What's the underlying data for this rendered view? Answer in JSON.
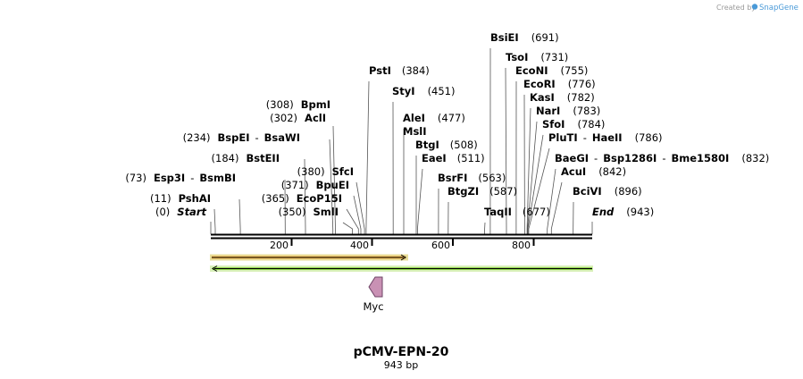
{
  "credit": {
    "text": "Created by",
    "brand": "SnapGene"
  },
  "map": {
    "name": "pCMV-EPN-20",
    "length_label": "943 bp",
    "length": 943,
    "ticks": [
      "200",
      "400",
      "600",
      "800"
    ],
    "feature_label": "Myc"
  },
  "sites": [
    {
      "key": "start",
      "name": "Start",
      "pos": 0,
      "num": "(0)",
      "italic": true
    },
    {
      "key": "pshai",
      "name": "PshAI",
      "pos": 11,
      "num": "(11)"
    },
    {
      "key": "esp3i",
      "name": "Esp3I",
      "name2": "BsmBI",
      "pos": 73,
      "num": "(73)"
    },
    {
      "key": "bsteii",
      "name": "BstEII",
      "pos": 184,
      "num": "(184)"
    },
    {
      "key": "bspei",
      "name": "BspEI",
      "name2": "BsaWI",
      "pos": 234,
      "num": "(234)"
    },
    {
      "key": "acli",
      "name": "AclI",
      "pos": 302,
      "num": "(302)"
    },
    {
      "key": "bpmi",
      "name": "BpmI",
      "pos": 308,
      "num": "(308)"
    },
    {
      "key": "smli",
      "name": "SmlI",
      "pos": 350,
      "num": "(350)"
    },
    {
      "key": "ecop15i",
      "name": "EcoP15I",
      "pos": 365,
      "num": "(365)"
    },
    {
      "key": "bpuei",
      "name": "BpuEI",
      "pos": 371,
      "num": "(371)"
    },
    {
      "key": "sfci",
      "name": "SfcI",
      "pos": 380,
      "num": "(380)"
    },
    {
      "key": "psti",
      "name": "PstI",
      "pos": 384,
      "num": "(384)"
    },
    {
      "key": "styi",
      "name": "StyI",
      "pos": 451,
      "num": "(451)"
    },
    {
      "key": "msli",
      "name": "MslI",
      "pos": 477,
      "num": ""
    },
    {
      "key": "alei",
      "name": "AleI",
      "pos": 477,
      "num": "(477)"
    },
    {
      "key": "btgi",
      "name": "BtgI",
      "pos": 508,
      "num": "(508)"
    },
    {
      "key": "eaei",
      "name": "EaeI",
      "pos": 511,
      "num": "(511)"
    },
    {
      "key": "bsrfi",
      "name": "BsrFI",
      "pos": 563,
      "num": "(563)"
    },
    {
      "key": "btgzi",
      "name": "BtgZI",
      "pos": 587,
      "num": "(587)"
    },
    {
      "key": "taqii",
      "name": "TaqII",
      "pos": 677,
      "num": "(677)"
    },
    {
      "key": "bsiei",
      "name": "BsiEI",
      "pos": 691,
      "num": "(691)"
    },
    {
      "key": "tsoi",
      "name": "TsoI",
      "pos": 731,
      "num": "(731)"
    },
    {
      "key": "econi",
      "name": "EcoNI",
      "pos": 755,
      "num": "(755)"
    },
    {
      "key": "ecori",
      "name": "EcoRI",
      "pos": 776,
      "num": "(776)"
    },
    {
      "key": "kasi",
      "name": "KasI",
      "pos": 782,
      "num": "(782)"
    },
    {
      "key": "nari",
      "name": "NarI",
      "pos": 783,
      "num": "(783)"
    },
    {
      "key": "sfoi",
      "name": "SfoI",
      "pos": 784,
      "num": "(784)"
    },
    {
      "key": "pluti",
      "name": "PluTI",
      "name2": "HaeII",
      "pos": 786,
      "num": "(786)"
    },
    {
      "key": "baegi",
      "name": "BaeGI",
      "name2": "Bsp1286I",
      "name3": "Bme1580I",
      "pos": 832,
      "num": "(832)"
    },
    {
      "key": "acui",
      "name": "AcuI",
      "pos": 842,
      "num": "(842)"
    },
    {
      "key": "bcivi",
      "name": "BciVI",
      "pos": 896,
      "num": "(896)"
    },
    {
      "key": "end",
      "name": "End",
      "pos": 943,
      "num": "(943)",
      "italic": true
    }
  ],
  "colors": {
    "top_bar": "#f0b24a",
    "top_bar_edge": "#e9de9a",
    "bottom_bar": "#8dd04a",
    "bottom_bar_edge": "#d8f0b8",
    "feature": "#c991b4",
    "feature_stroke": "#6e4466",
    "leader": "#555555",
    "credit": "#9a9a9a",
    "brand": "#4a9ad8"
  }
}
